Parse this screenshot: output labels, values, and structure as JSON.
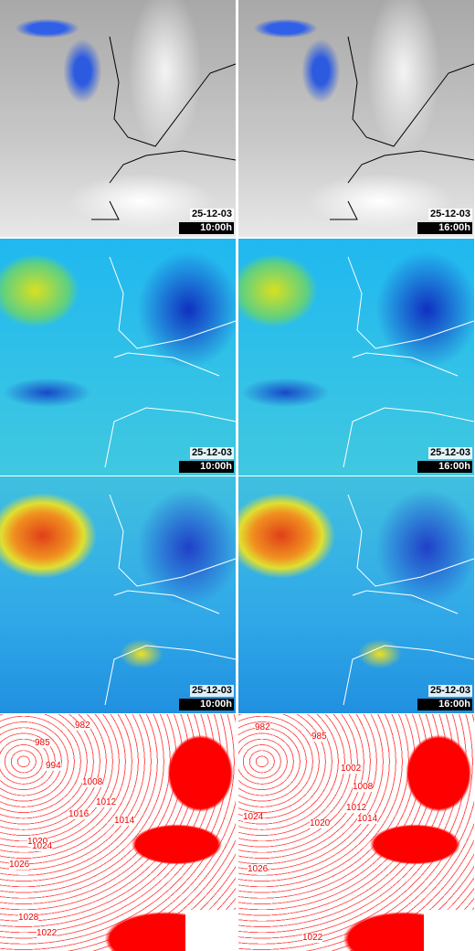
{
  "panels": [
    {
      "date": "25-12-03",
      "time": "10:00h"
    },
    {
      "date": "25-12-03",
      "time": "16:00h"
    },
    {
      "date": "25-12-03",
      "time": "10:00h"
    },
    {
      "date": "25-12-03",
      "time": "16:00h"
    },
    {
      "date": "25-12-03",
      "time": "10:00h"
    },
    {
      "date": "25-12-03",
      "time": "16:00h"
    }
  ],
  "isobars": {
    "left": [
      "985",
      "982",
      "994",
      "1008",
      "1012",
      "1016",
      "1014",
      "1020",
      "1024",
      "1026",
      "1028",
      "1022"
    ],
    "right": [
      "982",
      "985",
      "1002",
      "1008",
      "1012",
      "1014",
      "1020",
      "1024",
      "1026",
      "1022"
    ]
  }
}
